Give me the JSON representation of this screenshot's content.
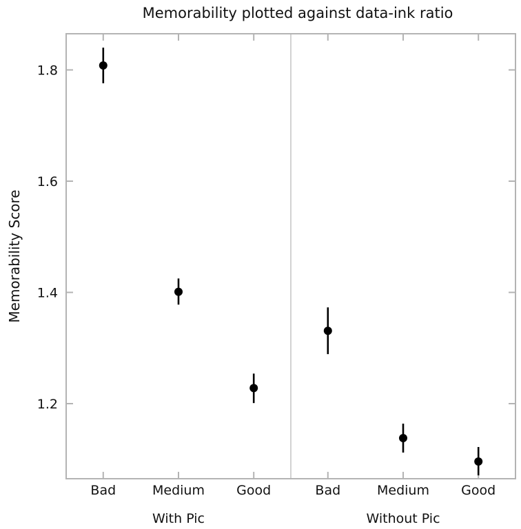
{
  "chart_data": {
    "type": "scatter",
    "title": "Memorability plotted against data-ink ratio",
    "ylabel": "Memorability Score",
    "xlabel": "",
    "ylim": [
      1.065,
      1.865
    ],
    "yticks": [
      "1.2",
      "1.4",
      "1.6",
      "1.8"
    ],
    "grid": false,
    "panels": [
      {
        "group": "With Pic",
        "categories": [
          "Bad",
          "Medium",
          "Good"
        ],
        "values": [
          1.808,
          1.401,
          1.228
        ],
        "err_low": [
          1.776,
          1.378,
          1.201
        ],
        "err_high": [
          1.84,
          1.425,
          1.254
        ]
      },
      {
        "group": "Without Pic",
        "categories": [
          "Bad",
          "Medium",
          "Good"
        ],
        "values": [
          1.331,
          1.138,
          1.096
        ],
        "err_low": [
          1.289,
          1.112,
          1.071
        ],
        "err_high": [
          1.373,
          1.164,
          1.122
        ]
      }
    ],
    "colors": {
      "marker": "#000000",
      "frame": "#b3b3b3",
      "divider": "#b3b3b3"
    }
  }
}
